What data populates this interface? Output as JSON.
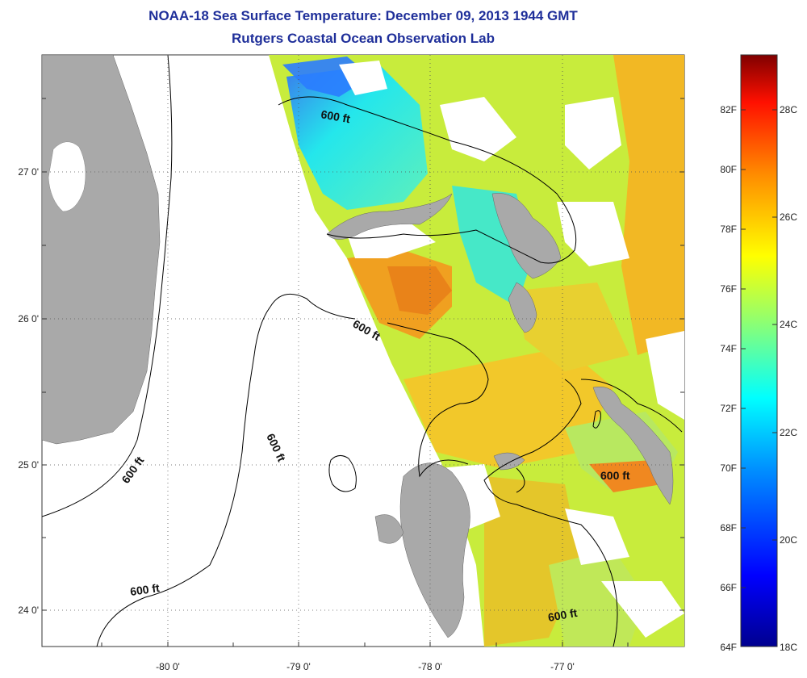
{
  "header": {
    "title": "NOAA-18 Sea Surface Temperature:  December 09, 2013 1944 GMT",
    "subtitle": "Rutgers Coastal Ocean Observation Lab"
  },
  "map": {
    "lon_ticks": [
      "-80 0'",
      "-79 0'",
      "-78 0'",
      "-77 0'"
    ],
    "lat_ticks": [
      "27 0'",
      "26 0'",
      "25 0'",
      "24 0'"
    ],
    "contour_labels": [
      "600 ft",
      "600 ft",
      "600 ft",
      "600 ft",
      "600 ft",
      "600 ft"
    ],
    "land_color": "#a9a9a9",
    "contour_color": "#000000"
  },
  "colorbar": {
    "f_ticks": [
      "82F",
      "80F",
      "78F",
      "76F",
      "74F",
      "72F",
      "70F",
      "68F",
      "66F",
      "64F"
    ],
    "c_ticks": [
      "28C",
      "26C",
      "24C",
      "22C",
      "20C",
      "18C"
    ],
    "colors": [
      "#00008f",
      "#0000ff",
      "#0080ff",
      "#00ffff",
      "#80ff80",
      "#ffff00",
      "#ff8000",
      "#ff0000",
      "#800000"
    ]
  }
}
